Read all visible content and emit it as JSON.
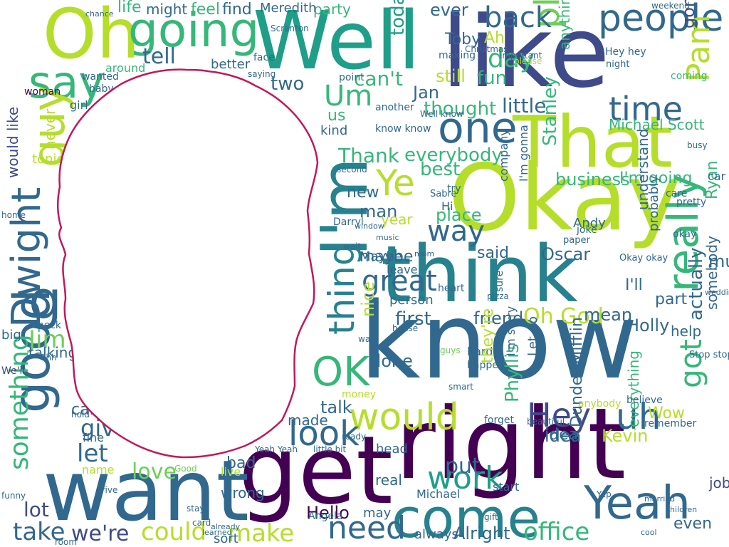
{
  "palette": {
    "background": "#ffffff",
    "outline": "#c2185b",
    "viridis": [
      "#440154",
      "#482878",
      "#3e4a89",
      "#31688e",
      "#26828e",
      "#1f9e89",
      "#35b779",
      "#6ece58",
      "#b5de2b",
      "#fde725"
    ]
  },
  "words": [
    {
      "text": "know",
      "color": "#31688e"
    },
    {
      "text": "get",
      "color": "#440154"
    },
    {
      "text": "right",
      "color": "#440154"
    },
    {
      "text": "Okay",
      "color": "#b5de2b"
    },
    {
      "text": "like",
      "color": "#3e4a89"
    },
    {
      "text": "Well",
      "color": "#1f9e89"
    },
    {
      "text": "want",
      "color": "#31688e"
    },
    {
      "text": "think",
      "color": "#26828e"
    },
    {
      "text": "I'm",
      "color": "#26828e"
    },
    {
      "text": "That",
      "color": "#b5de2b"
    },
    {
      "text": "Oh",
      "color": "#b5de2b"
    },
    {
      "text": "going",
      "color": "#35b779"
    },
    {
      "text": "come",
      "color": "#26828e"
    },
    {
      "text": "Yeah",
      "color": "#31688e"
    },
    {
      "text": "would",
      "color": "#b5de2b"
    },
    {
      "text": "go",
      "color": "#31688e"
    },
    {
      "text": "good",
      "color": "#31688e"
    },
    {
      "text": "one",
      "color": "#31688e"
    },
    {
      "text": "need",
      "color": "#31688e"
    },
    {
      "text": "people",
      "color": "#31688e"
    },
    {
      "text": "say",
      "color": "#35b779"
    },
    {
      "text": "really",
      "color": "#35b779"
    },
    {
      "text": "Dwight",
      "color": "#31688e"
    },
    {
      "text": "guy",
      "color": "#b5de2b"
    },
    {
      "text": "thing",
      "color": "#26828e"
    },
    {
      "text": "OK",
      "color": "#35b779"
    },
    {
      "text": "look",
      "color": "#31688e"
    },
    {
      "text": "Hey",
      "color": "#3e4a89"
    },
    {
      "text": "uh",
      "color": "#31688e"
    },
    {
      "text": "time",
      "color": "#31688e"
    },
    {
      "text": "Um",
      "color": "#35b779"
    },
    {
      "text": "Ye",
      "color": "#b5de2b"
    },
    {
      "text": "Pam",
      "color": "#b5de2b"
    },
    {
      "text": "please",
      "color": "#6ece58"
    },
    {
      "text": "office",
      "color": "#35b779"
    },
    {
      "text": "make",
      "color": "#b5de2b"
    },
    {
      "text": "could",
      "color": "#b5de2b"
    },
    {
      "text": "take",
      "color": "#31688e"
    },
    {
      "text": "we're",
      "color": "#3e4a89"
    },
    {
      "text": "something",
      "color": "#35b779"
    },
    {
      "text": "got",
      "color": "#35b779"
    },
    {
      "text": "work",
      "color": "#1f9e89"
    },
    {
      "text": "great",
      "color": "#31688e"
    },
    {
      "text": "way",
      "color": "#31688e"
    },
    {
      "text": "Jim",
      "color": "#6ece58"
    },
    {
      "text": "day",
      "color": "#35b779"
    },
    {
      "text": "back",
      "color": "#31688e"
    },
    {
      "text": "let",
      "color": "#31688e"
    },
    {
      "text": "love",
      "color": "#6ece58"
    },
    {
      "text": "put",
      "color": "#31688e"
    },
    {
      "text": "give",
      "color": "#31688e"
    },
    {
      "text": "tell",
      "color": "#31688e"
    },
    {
      "text": "everybody",
      "color": "#35b779"
    },
    {
      "text": "Thank",
      "color": "#35b779"
    },
    {
      "text": "little",
      "color": "#31688e"
    },
    {
      "text": "thought",
      "color": "#35b779"
    },
    {
      "text": "can't",
      "color": "#35b779"
    },
    {
      "text": "today",
      "color": "#1f9e89"
    },
    {
      "text": "two",
      "color": "#31688e"
    },
    {
      "text": "Alright",
      "color": "#31688e"
    },
    {
      "text": "always",
      "color": "#31688e"
    },
    {
      "text": "lot",
      "color": "#3e4a89"
    },
    {
      "text": "Hello",
      "color": "#440154"
    },
    {
      "text": "Oh God",
      "color": "#b5de2b"
    },
    {
      "text": "Michael Scott",
      "color": "#35b779"
    },
    {
      "text": "Stanley",
      "color": "#35b779"
    },
    {
      "text": "business",
      "color": "#35b779"
    },
    {
      "text": "I'm going",
      "color": "#35b779"
    },
    {
      "text": "gonna",
      "color": "#3e4a89"
    },
    {
      "text": "much",
      "color": "#31688e"
    },
    {
      "text": "Ryan",
      "color": "#35b779"
    },
    {
      "text": "Oscar",
      "color": "#31688e"
    },
    {
      "text": "idea",
      "color": "#31688e"
    },
    {
      "text": "Kevin",
      "color": "#b5de2b"
    },
    {
      "text": "Phyllis",
      "color": "#35b779"
    },
    {
      "text": "Dunder Mifflin",
      "color": "#31688e"
    },
    {
      "text": "Holly",
      "color": "#31688e"
    },
    {
      "text": "mean",
      "color": "#31688e"
    },
    {
      "text": "friend",
      "color": "#31688e"
    },
    {
      "text": "first",
      "color": "#31688e"
    },
    {
      "text": "maybe",
      "color": "#31688e"
    },
    {
      "text": "Toby",
      "color": "#31688e"
    },
    {
      "text": "Jan",
      "color": "#31688e"
    },
    {
      "text": "life",
      "color": "#35b779"
    },
    {
      "text": "might",
      "color": "#31688e"
    },
    {
      "text": "feel",
      "color": "#35b779"
    },
    {
      "text": "find",
      "color": "#31688e"
    },
    {
      "text": "party",
      "color": "#35b779"
    },
    {
      "text": "Meredith",
      "color": "#31688e"
    },
    {
      "text": "ever",
      "color": "#31688e"
    },
    {
      "text": "still",
      "color": "#b5de2b"
    },
    {
      "text": "fun",
      "color": "#35b779"
    },
    {
      "text": "Ah",
      "color": "#b5de2b"
    },
    {
      "text": "done",
      "color": "#31688e"
    },
    {
      "text": "said",
      "color": "#31688e"
    },
    {
      "text": "place",
      "color": "#35b779"
    },
    {
      "text": "man",
      "color": "#31688e"
    },
    {
      "text": "new",
      "color": "#31688e"
    },
    {
      "text": "year",
      "color": "#b5de2b"
    },
    {
      "text": "nice",
      "color": "#b5de2b"
    },
    {
      "text": "talk",
      "color": "#31688e"
    },
    {
      "text": "kind",
      "color": "#31688e"
    },
    {
      "text": "us",
      "color": "#35b779"
    },
    {
      "text": "never",
      "color": "#b5de2b"
    },
    {
      "text": "would like",
      "color": "#3e4a89"
    },
    {
      "text": "tonight",
      "color": "#b5de2b"
    },
    {
      "text": "best",
      "color": "#35b779"
    },
    {
      "text": "Andy",
      "color": "#31688e"
    },
    {
      "text": "I'll",
      "color": "#31688e"
    },
    {
      "text": "part",
      "color": "#31688e"
    },
    {
      "text": "help",
      "color": "#31688e"
    },
    {
      "text": "somebody",
      "color": "#31688e"
    },
    {
      "text": "actually",
      "color": "#31688e"
    },
    {
      "text": "Wow",
      "color": "#b5de2b"
    },
    {
      "text": "understand",
      "color": "#31688e"
    },
    {
      "text": "probably",
      "color": "#31688e"
    },
    {
      "text": "job",
      "color": "#3e4a89"
    },
    {
      "text": "even",
      "color": "#31688e"
    },
    {
      "text": "everything",
      "color": "#35b779"
    },
    {
      "text": "talking",
      "color": "#31688e"
    },
    {
      "text": "call",
      "color": "#31688e"
    },
    {
      "text": "bad",
      "color": "#31688e"
    },
    {
      "text": "wrong",
      "color": "#31688e"
    },
    {
      "text": "sort",
      "color": "#31688e"
    },
    {
      "text": "live",
      "color": "#b5de2b"
    },
    {
      "text": "name",
      "color": "#b5de2b"
    },
    {
      "text": "fine",
      "color": "#31688e"
    },
    {
      "text": "may",
      "color": "#31688e"
    },
    {
      "text": "real",
      "color": "#31688e"
    },
    {
      "text": "head",
      "color": "#31688e"
    },
    {
      "text": "made",
      "color": "#31688e"
    },
    {
      "text": "Maybe",
      "color": "#31688e"
    },
    {
      "text": "leave",
      "color": "#31688e"
    },
    {
      "text": "person",
      "color": "#31688e"
    },
    {
      "text": "woman",
      "color": "#440154"
    },
    {
      "text": "baby",
      "color": "#31688e"
    },
    {
      "text": "wanted",
      "color": "#31688e"
    },
    {
      "text": "around",
      "color": "#35b779"
    },
    {
      "text": "better",
      "color": "#31688e"
    },
    {
      "text": "girl",
      "color": "#31688e"
    },
    {
      "text": "big",
      "color": "#31688e"
    },
    {
      "text": "We'll",
      "color": "#3e4a89"
    },
    {
      "text": "idea",
      "color": "#31688e"
    },
    {
      "text": "Yeah Yeah",
      "color": "#31688e"
    },
    {
      "text": "little bit",
      "color": "#31688e"
    },
    {
      "text": "Angela",
      "color": "#31688e"
    },
    {
      "text": "Michael",
      "color": "#31688e"
    },
    {
      "text": "start",
      "color": "#31688e"
    },
    {
      "text": "hard",
      "color": "#31688e"
    },
    {
      "text": "happen",
      "color": "#31688e"
    },
    {
      "text": "I'm sorry",
      "color": "#31688e"
    },
    {
      "text": "Let go",
      "color": "#31688e"
    },
    {
      "text": "sure",
      "color": "#31688e"
    },
    {
      "text": "they're",
      "color": "#b5de2b"
    },
    {
      "text": "company",
      "color": "#31688e"
    },
    {
      "text": "I'm gonna",
      "color": "#31688e"
    },
    {
      "text": "Darryl",
      "color": "#31688e"
    },
    {
      "text": "pretty",
      "color": "#31688e"
    },
    {
      "text": "care",
      "color": "#31688e"
    },
    {
      "text": "okay",
      "color": "#31688e"
    },
    {
      "text": "Okay okay",
      "color": "#31688e"
    },
    {
      "text": "Stop stop",
      "color": "#31688e"
    },
    {
      "text": "check",
      "color": "#31688e"
    },
    {
      "text": "room",
      "color": "#31688e"
    },
    {
      "text": "mom",
      "color": "#31688e"
    },
    {
      "text": "Good",
      "color": "#6ece58"
    },
    {
      "text": "guys",
      "color": "#6ece58"
    },
    {
      "text": "car",
      "color": "#31688e"
    },
    {
      "text": "Sabre",
      "color": "#31688e"
    },
    {
      "text": "joke",
      "color": "#31688e"
    },
    {
      "text": "paper",
      "color": "#31688e"
    },
    {
      "text": "coming",
      "color": "#35b779"
    },
    {
      "text": "night",
      "color": "#31688e"
    },
    {
      "text": "busy",
      "color": "#31688e"
    },
    {
      "text": "Hey hey",
      "color": "#31688e"
    },
    {
      "text": "Christmas",
      "color": "#31688e"
    },
    {
      "text": "making",
      "color": "#31688e"
    },
    {
      "text": "important",
      "color": "#31688e"
    },
    {
      "text": "anything",
      "color": "#35b779"
    },
    {
      "text": "weekend",
      "color": "#31688e"
    },
    {
      "text": "please",
      "color": "#b5de2b"
    },
    {
      "text": "hold",
      "color": "#31688e"
    },
    {
      "text": "pizza",
      "color": "#31688e"
    },
    {
      "text": "heart",
      "color": "#31688e"
    },
    {
      "text": "gift",
      "color": "#31688e"
    },
    {
      "text": "Yep",
      "color": "#31688e"
    },
    {
      "text": "Hi",
      "color": "#31688e"
    },
    {
      "text": "try",
      "color": "#31688e"
    },
    {
      "text": "second",
      "color": "#31688e"
    },
    {
      "text": "another",
      "color": "#31688e"
    },
    {
      "text": "know know",
      "color": "#31688e"
    },
    {
      "text": "Well know",
      "color": "#31688e"
    },
    {
      "text": "point",
      "color": "#31688e"
    },
    {
      "text": "face",
      "color": "#31688e"
    },
    {
      "text": "saying",
      "color": "#31688e"
    },
    {
      "text": "wait",
      "color": "#31688e"
    },
    {
      "text": "window",
      "color": "#31688e"
    },
    {
      "text": "music",
      "color": "#31688e"
    },
    {
      "text": "smart",
      "color": "#31688e"
    },
    {
      "text": "beautiful",
      "color": "#31688e"
    },
    {
      "text": "remember",
      "color": "#31688e"
    },
    {
      "text": "believe",
      "color": "#31688e"
    },
    {
      "text": "forget",
      "color": "#31688e"
    },
    {
      "text": "anybody",
      "color": "#b5de2b"
    },
    {
      "text": "ready",
      "color": "#31688e"
    },
    {
      "text": "walk",
      "color": "#31688e"
    },
    {
      "text": "house",
      "color": "#31688e"
    },
    {
      "text": "money",
      "color": "#b5de2b"
    },
    {
      "text": "home",
      "color": "#31688e"
    },
    {
      "text": "funny",
      "color": "#31688e"
    },
    {
      "text": "drive",
      "color": "#31688e"
    },
    {
      "text": "married",
      "color": "#31688e"
    },
    {
      "text": "children",
      "color": "#31688e"
    },
    {
      "text": "Ohh",
      "color": "#31688e"
    },
    {
      "text": "cool",
      "color": "#31688e"
    },
    {
      "text": "stay",
      "color": "#31688e"
    },
    {
      "text": "card",
      "color": "#31688e"
    },
    {
      "text": "learned",
      "color": "#31688e"
    },
    {
      "text": "already",
      "color": "#31688e"
    },
    {
      "text": "wedding",
      "color": "#31688e"
    },
    {
      "text": "Scranton",
      "color": "#31688e"
    },
    {
      "text": "chance",
      "color": "#31688e"
    },
    {
      "text": "Oh yeah",
      "color": "#31688e"
    },
    {
      "text": "believe",
      "color": "#31688e"
    },
    {
      "text": "sit",
      "color": "#b5de2b"
    },
    {
      "text": "ask",
      "color": "#31688e"
    }
  ]
}
